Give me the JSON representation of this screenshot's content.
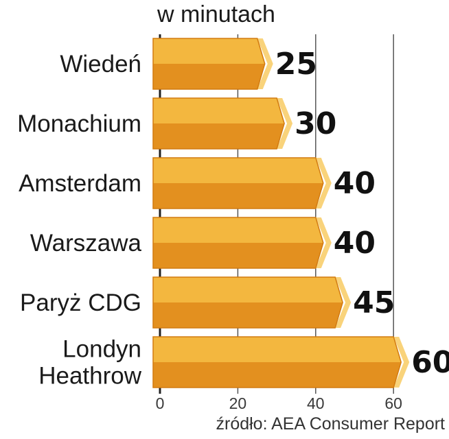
{
  "chart_data": {
    "type": "bar",
    "orientation": "horizontal",
    "title": "",
    "unit_label": "w minutach",
    "categories": [
      [
        "Wiedeń"
      ],
      [
        "Monachium"
      ],
      [
        "Amsterdam"
      ],
      [
        "Warszawa"
      ],
      [
        "Paryż CDG"
      ],
      [
        "Londyn",
        "Heathrow"
      ]
    ],
    "values": [
      25,
      30,
      40,
      40,
      45,
      60
    ],
    "xlim": [
      0,
      60
    ],
    "xticks": [
      0,
      20,
      40,
      60
    ],
    "grid": true,
    "colors": {
      "bar_top": "#f3b73f",
      "bar_bottom": "#e3901f",
      "bar_end": "#f9d37b",
      "bar_edge": "#d27b10",
      "grid": "#555555"
    }
  },
  "source": "źródło: AEA Consumer Report"
}
